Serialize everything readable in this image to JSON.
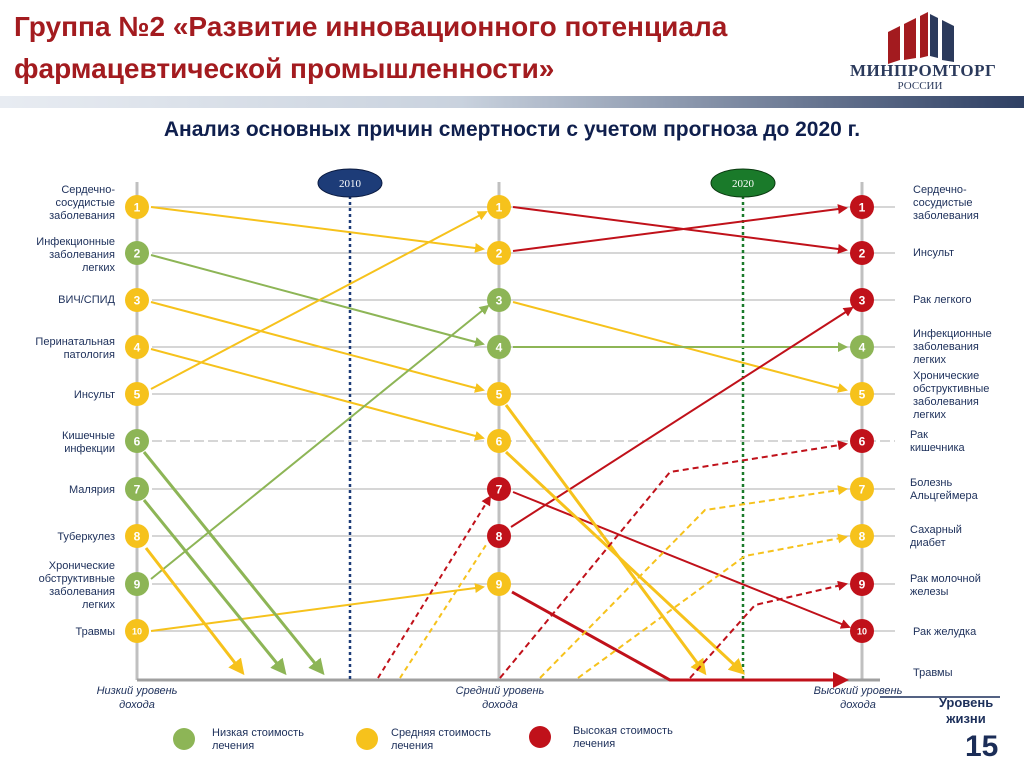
{
  "header": {
    "title": "Группа №2 «Развитие инновационного потенциала фармацевтической промышленности»"
  },
  "logo": {
    "line1": "МИНПРОМТОРГ",
    "line2": "РОССИИ"
  },
  "subtitle": "Анализ основных причин смертности с учетом прогноза до 2020 г.",
  "years": [
    "2010",
    "2020"
  ],
  "columns": [
    "Низкий уровень дохода",
    "Средний уровень дохода",
    "Высокий уровень дохода"
  ],
  "axis_title": "Уровень жизни",
  "colors": {
    "green": "#8db556",
    "yellow": "#f6c21c",
    "red": "#c0111a",
    "navy": "#1c2f5a"
  },
  "left_column": [
    {
      "rank": 1,
      "label": "Сердечно-сосудистые заболевания",
      "cost": "yellow"
    },
    {
      "rank": 2,
      "label": "Инфекционные заболевания легких",
      "cost": "green"
    },
    {
      "rank": 3,
      "label": "ВИЧ/СПИД",
      "cost": "yellow"
    },
    {
      "rank": 4,
      "label": "Перинатальная патология",
      "cost": "yellow"
    },
    {
      "rank": 5,
      "label": "Инсульт",
      "cost": "yellow"
    },
    {
      "rank": 6,
      "label": "Кишечные инфекции",
      "cost": "green"
    },
    {
      "rank": 7,
      "label": "Малярия",
      "cost": "green"
    },
    {
      "rank": 8,
      "label": "Туберкулез",
      "cost": "yellow"
    },
    {
      "rank": 9,
      "label": "Хронические обструктивные заболевания легких",
      "cost": "green"
    },
    {
      "rank": 10,
      "label": "Травмы",
      "cost": "yellow"
    }
  ],
  "middle_column": [
    {
      "rank": 1,
      "cost": "yellow"
    },
    {
      "rank": 2,
      "cost": "yellow"
    },
    {
      "rank": 3,
      "cost": "green"
    },
    {
      "rank": 4,
      "cost": "green"
    },
    {
      "rank": 5,
      "cost": "yellow"
    },
    {
      "rank": 6,
      "cost": "yellow"
    },
    {
      "rank": 7,
      "cost": "red"
    },
    {
      "rank": 8,
      "cost": "red"
    },
    {
      "rank": 9,
      "cost": "yellow"
    }
  ],
  "right_column": [
    {
      "rank": 1,
      "label": "Сердечно-сосудистые заболевания",
      "cost": "red"
    },
    {
      "rank": 2,
      "label": "Инсульт",
      "cost": "red"
    },
    {
      "rank": 3,
      "label": "Рак легкого",
      "cost": "red"
    },
    {
      "rank": 4,
      "label": "Инфекционные заболевания легких",
      "cost": "green"
    },
    {
      "rank": 5,
      "label": "Хронические обструктивные заболевания легких",
      "cost": "yellow"
    },
    {
      "rank": 6,
      "label": "Рак кишечника",
      "cost": "red"
    },
    {
      "rank": 7,
      "label": "Болезнь Альцгеймера",
      "cost": "yellow"
    },
    {
      "rank": 8,
      "label": "Сахарный диабет",
      "cost": "yellow"
    },
    {
      "rank": 9,
      "label": "Рак молочной железы",
      "cost": "red"
    },
    {
      "rank": 10,
      "label": "Рак желудка",
      "cost": "red"
    },
    {
      "rank": null,
      "label": "Травмы",
      "cost": null
    }
  ],
  "legend": [
    {
      "label": "Низкая стоимость лечения",
      "color": "green"
    },
    {
      "label": "Средняя стоимость лечения",
      "color": "yellow"
    },
    {
      "label": "Высокая стоимость лечения",
      "color": "red"
    }
  ],
  "page_number": "15"
}
